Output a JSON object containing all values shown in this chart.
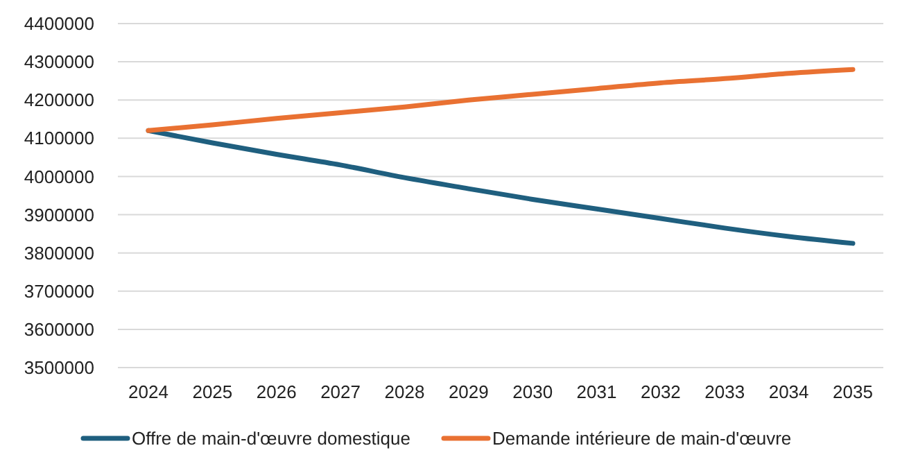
{
  "chart_data": {
    "type": "line",
    "categories": [
      "2024",
      "2025",
      "2026",
      "2027",
      "2028",
      "2029",
      "2030",
      "2031",
      "2032",
      "2033",
      "2034",
      "2035"
    ],
    "series": [
      {
        "name": "Offre de main-d'œuvre domestique",
        "color": "#1f5f7f",
        "values": [
          4120000,
          4088000,
          4058000,
          4030000,
          3997000,
          3968000,
          3940000,
          3915000,
          3890000,
          3865000,
          3843000,
          3825000
        ]
      },
      {
        "name": "Demande intérieure de main-d'œuvre",
        "color": "#e97132",
        "values": [
          4120000,
          4135000,
          4152000,
          4167000,
          4182000,
          4200000,
          4215000,
          4230000,
          4245000,
          4256000,
          4270000,
          4280000
        ]
      }
    ],
    "ylim": [
      3500000,
      4400000
    ],
    "yticks": [
      3500000,
      3600000,
      3700000,
      3800000,
      3900000,
      4000000,
      4100000,
      4200000,
      4300000,
      4400000
    ],
    "grid": "y",
    "legend": "bottom",
    "marker": "none",
    "line_style": "solid"
  }
}
